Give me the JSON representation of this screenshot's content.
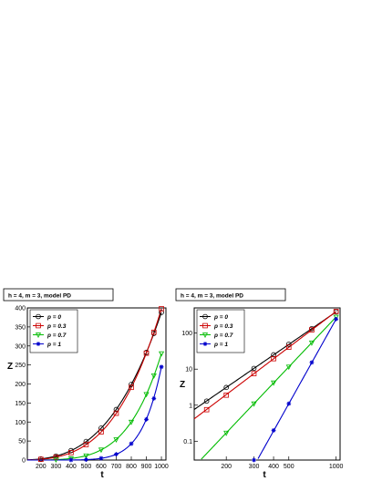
{
  "chart_data": [
    {
      "type": "scatter",
      "title": "h = 4, m = 3, model PD",
      "xlabel": "t",
      "ylabel": "Z",
      "xlim": [
        110,
        1030
      ],
      "ylim": [
        0,
        400
      ],
      "log_x": false,
      "log_y": false,
      "x_ticks": [
        200,
        300,
        400,
        500,
        600,
        700,
        800,
        900,
        1000
      ],
      "y_ticks": [
        0,
        50,
        100,
        150,
        200,
        250,
        300,
        350,
        400
      ],
      "legend": "top-left",
      "series": [
        {
          "name": "p = 0",
          "marker": "circle",
          "color": "#000000",
          "exponent": 3.0,
          "x": [
            200,
            300,
            400,
            500,
            600,
            700,
            800,
            900,
            950,
            1000
          ],
          "y": [
            3,
            10.5,
            25,
            49,
            84,
            133,
            199,
            283,
            333,
            388
          ]
        },
        {
          "name": "p = 0.3",
          "marker": "square",
          "color": "#cc0000",
          "exponent": 3.3,
          "x": [
            200,
            300,
            400,
            500,
            600,
            700,
            800,
            900,
            950,
            1000
          ],
          "y": [
            1.9,
            7.5,
            19.5,
            40.6,
            74,
            123,
            191,
            281,
            336,
            398
          ]
        },
        {
          "name": "p = 0.7",
          "marker": "triangle-down",
          "color": "#00bb00",
          "exponent": 4.6,
          "x": [
            300,
            400,
            500,
            600,
            700,
            800,
            900,
            950,
            1000
          ],
          "y": [
            1.1,
            4.2,
            11.6,
            27,
            54,
            100,
            173,
            222,
            280
          ]
        },
        {
          "name": "p = 1",
          "marker": "star",
          "color": "#0000cc",
          "exponent": 7.8,
          "x": [
            400,
            500,
            600,
            700,
            800,
            900,
            950,
            1000
          ],
          "y": [
            0.2,
            1.1,
            4.7,
            15.3,
            43,
            107,
            162,
            245
          ]
        }
      ]
    },
    {
      "type": "scatter",
      "title": "h = 4, m = 3, model PD",
      "xlabel": "t",
      "ylabel": "Z",
      "xlim": [
        125,
        1060
      ],
      "ylim": [
        0.03,
        500
      ],
      "log_x": true,
      "log_y": true,
      "x_ticks": [
        200,
        300,
        400,
        500,
        1000
      ],
      "y_ticks": [
        0.1,
        1,
        10,
        100
      ],
      "legend": "top-left",
      "series": [
        {
          "name": "p = 0",
          "marker": "circle",
          "color": "#000000",
          "exponent": 3.0,
          "x": [
            150,
            200,
            300,
            400,
            500,
            700,
            1000
          ],
          "y": [
            1.3,
            3.1,
            10.5,
            25,
            49,
            133,
            388
          ]
        },
        {
          "name": "p = 0.3",
          "marker": "square",
          "color": "#cc0000",
          "exponent": 3.3,
          "x": [
            150,
            200,
            300,
            400,
            500,
            700,
            1000
          ],
          "y": [
            0.75,
            1.9,
            7.5,
            19.5,
            40.6,
            123,
            398
          ]
        },
        {
          "name": "p = 0.7",
          "marker": "triangle-down",
          "color": "#00bb00",
          "exponent": 4.6,
          "x": [
            200,
            300,
            400,
            500,
            700,
            1000
          ],
          "y": [
            0.17,
            1.1,
            4.2,
            11.6,
            54,
            280
          ]
        },
        {
          "name": "p = 1",
          "marker": "star",
          "color": "#0000cc",
          "exponent": 7.8,
          "x": [
            300,
            400,
            500,
            700,
            1000
          ],
          "y": [
            0.03,
            0.2,
            1.1,
            15.3,
            245
          ]
        }
      ]
    }
  ]
}
